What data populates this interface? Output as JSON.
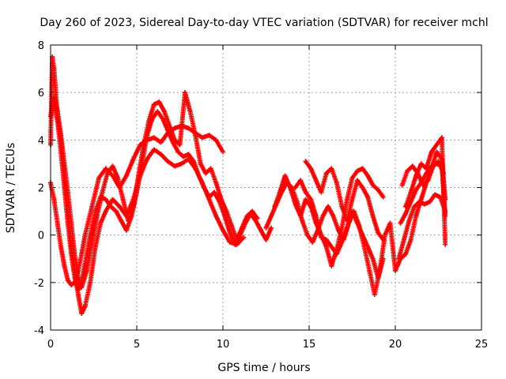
{
  "chart_data": {
    "type": "scatter",
    "title": "Day 260 of 2023, Sidereal Day-to-day VTEC variation (SDTVAR) for receiver mchl",
    "xlabel": "GPS time / hours",
    "ylabel": "SDTVAR / TECUs",
    "xlim": [
      0,
      25
    ],
    "ylim": [
      -4,
      8
    ],
    "xticks": [
      0,
      5,
      10,
      15,
      20,
      25
    ],
    "yticks": [
      -4,
      -2,
      0,
      2,
      4,
      6,
      8
    ],
    "grid": true,
    "marker": "+",
    "color": "#ff0000",
    "series": [
      {
        "name": "trace-1",
        "x": [
          0.0,
          0.2,
          0.4,
          0.6,
          0.8,
          1.0,
          1.2,
          1.4,
          1.6,
          1.8,
          2.0,
          2.4,
          2.8,
          3.2,
          3.6,
          4.0,
          4.4,
          4.8,
          5.2,
          5.6,
          6.0,
          6.4,
          6.8,
          7.2,
          7.6,
          8.0,
          8.4,
          8.8,
          9.2,
          9.6,
          10.0
        ],
        "y": [
          2.2,
          1.5,
          0.5,
          -0.5,
          -1.3,
          -1.9,
          -2.1,
          -2.0,
          -1.5,
          -0.8,
          0.0,
          1.2,
          2.4,
          2.8,
          2.5,
          2.0,
          2.5,
          3.2,
          3.8,
          4.0,
          4.1,
          3.9,
          4.3,
          4.5,
          4.6,
          4.5,
          4.3,
          4.1,
          4.2,
          4.0,
          3.5
        ]
      },
      {
        "name": "trace-2",
        "x": [
          0.0,
          0.1,
          0.2,
          0.3,
          0.4,
          0.6,
          0.8,
          1.0,
          1.2,
          1.4,
          1.6,
          1.8,
          2.0,
          2.3,
          2.6,
          2.9,
          3.2,
          3.6,
          4.0,
          4.4,
          4.8,
          5.2,
          5.6,
          6.0,
          6.4,
          6.8,
          7.2,
          7.6,
          8.0,
          8.4,
          8.8,
          9.2,
          9.6,
          10.0,
          10.4,
          10.8,
          11.2
        ],
        "y": [
          3.8,
          7.5,
          7.0,
          6.0,
          5.0,
          4.0,
          2.5,
          1.0,
          -0.5,
          -1.5,
          -2.5,
          -3.3,
          -3.0,
          -2.0,
          -0.5,
          0.5,
          1.0,
          1.5,
          1.2,
          0.8,
          1.5,
          2.5,
          3.2,
          3.6,
          3.4,
          3.1,
          2.9,
          3.0,
          3.2,
          2.8,
          2.2,
          1.5,
          0.8,
          0.2,
          -0.3,
          -0.4,
          -0.1
        ]
      },
      {
        "name": "trace-3",
        "x": [
          0.0,
          0.2,
          0.4,
          0.6,
          0.8,
          1.0,
          1.2,
          1.4,
          1.6,
          1.8,
          2.1,
          2.4,
          2.7,
          3.0,
          3.3,
          3.6,
          3.9,
          4.2,
          4.5,
          4.8,
          5.1,
          5.4,
          5.7,
          6.0,
          6.3,
          6.6,
          6.9,
          7.2,
          7.5,
          7.8,
          8.1,
          8.4,
          8.7,
          9.0,
          9.3,
          9.6,
          9.9,
          10.2,
          10.5,
          10.8,
          11.1,
          11.4,
          11.7,
          12.0
        ],
        "y": [
          5.0,
          5.8,
          5.2,
          4.2,
          3.0,
          1.8,
          0.5,
          -0.8,
          -1.8,
          -2.2,
          -1.5,
          -0.3,
          0.8,
          1.8,
          2.6,
          2.9,
          2.4,
          1.5,
          0.6,
          1.2,
          2.5,
          3.8,
          4.8,
          5.5,
          5.6,
          5.2,
          4.6,
          4.0,
          3.8,
          6.0,
          5.2,
          4.2,
          3.0,
          2.6,
          2.8,
          2.2,
          1.5,
          1.0,
          0.4,
          -0.2,
          0.3,
          0.8,
          1.0,
          0.7
        ]
      },
      {
        "name": "trace-4",
        "x": [
          0.2,
          0.4,
          0.6,
          0.8,
          1.0,
          1.2,
          1.4,
          1.6,
          1.8,
          2.0,
          2.3,
          2.6,
          2.9,
          3.2,
          3.5,
          3.8,
          4.1,
          4.4,
          4.7,
          5.0,
          5.3,
          5.6,
          5.9,
          6.2,
          6.5,
          6.8,
          7.1,
          7.4,
          7.7,
          8.0,
          8.3,
          8.6,
          8.9,
          9.2,
          9.5,
          9.8,
          10.1,
          10.4,
          10.7,
          11.0,
          11.3,
          11.6,
          11.9,
          12.2,
          12.5,
          12.8
        ],
        "y": [
          5.5,
          4.8,
          3.5,
          2.0,
          0.5,
          -0.8,
          -1.8,
          -2.3,
          -2.0,
          -1.2,
          0.0,
          1.0,
          1.6,
          1.5,
          1.2,
          1.0,
          0.6,
          0.2,
          0.8,
          1.8,
          3.0,
          4.2,
          4.9,
          5.2,
          4.9,
          4.4,
          3.9,
          3.5,
          3.3,
          3.4,
          3.1,
          2.5,
          2.0,
          1.6,
          1.8,
          1.4,
          0.8,
          0.1,
          -0.4,
          0.0,
          0.5,
          0.9,
          0.6,
          0.2,
          -0.2,
          0.3
        ]
      },
      {
        "name": "trace-5",
        "x": [
          12.5,
          12.8,
          13.1,
          13.4,
          13.7,
          14.0,
          14.3,
          14.6,
          14.9,
          15.2,
          15.5,
          15.8,
          16.1,
          16.4,
          16.7,
          17.0,
          17.3,
          17.6,
          17.9,
          18.2,
          18.5,
          18.8,
          19.1,
          19.4,
          19.7,
          20.0,
          20.3,
          20.6,
          20.9,
          21.2,
          21.5,
          21.8,
          22.1,
          22.4,
          22.7,
          22.9
        ],
        "y": [
          0.3,
          0.8,
          1.3,
          1.8,
          2.2,
          2.0,
          1.4,
          0.6,
          0.0,
          -0.3,
          0.2,
          0.8,
          1.2,
          0.8,
          0.2,
          -0.2,
          0.5,
          1.0,
          0.4,
          -0.5,
          -1.5,
          -2.5,
          -1.5,
          0.0,
          0.5,
          -1.5,
          -1.0,
          -0.8,
          -0.2,
          0.8,
          1.5,
          2.2,
          2.8,
          3.5,
          3.2,
          1.5
        ]
      },
      {
        "name": "trace-6",
        "x": [
          13.0,
          13.3,
          13.6,
          13.9,
          14.2,
          14.5,
          14.8,
          15.1,
          15.4,
          15.7,
          16.0,
          16.3,
          16.6,
          16.9,
          17.2,
          17.5,
          17.8,
          18.1,
          18.4,
          18.7,
          19.0,
          19.3
        ],
        "y": [
          1.2,
          1.8,
          2.5,
          2.0,
          1.3,
          0.8,
          1.5,
          1.2,
          0.5,
          0.0,
          -0.5,
          -1.3,
          -0.6,
          0.3,
          1.5,
          2.4,
          2.7,
          2.8,
          2.5,
          2.1,
          1.9,
          1.6
        ]
      },
      {
        "name": "trace-7",
        "x": [
          14.2,
          14.5,
          14.8,
          15.1,
          15.4,
          15.7,
          16.0,
          16.3,
          16.6,
          16.9,
          17.2,
          17.5,
          17.8,
          18.1,
          18.4,
          18.7,
          19.0,
          19.3
        ],
        "y": [
          2.0,
          2.3,
          1.8,
          1.5,
          0.8,
          -0.1,
          -0.2,
          -0.5,
          -0.8,
          -0.3,
          0.3,
          1.0,
          0.5,
          0.0,
          -0.5,
          -1.0,
          -1.8,
          -1.0
        ]
      },
      {
        "name": "trace-8",
        "x": [
          14.8,
          15.1,
          15.4,
          15.7,
          16.0,
          16.3,
          16.6,
          16.9,
          17.2,
          17.5,
          17.8,
          18.1,
          18.4,
          18.7,
          19.0,
          19.3
        ],
        "y": [
          3.1,
          2.8,
          2.3,
          1.8,
          2.6,
          2.8,
          2.2,
          1.2,
          0.6,
          1.5,
          2.3,
          2.0,
          1.6,
          0.8,
          0.1,
          -0.2
        ]
      },
      {
        "name": "trace-9",
        "x": [
          20.2,
          20.5,
          20.8,
          21.1,
          21.4,
          21.7,
          22.0,
          22.3,
          22.6,
          22.9
        ],
        "y": [
          -1.0,
          -0.2,
          0.6,
          1.2,
          1.4,
          1.3,
          1.4,
          1.7,
          1.6,
          1.0
        ]
      },
      {
        "name": "trace-10",
        "x": [
          20.4,
          20.7,
          21.0,
          21.3,
          21.6,
          21.9,
          22.2,
          22.5,
          22.8
        ],
        "y": [
          2.1,
          2.7,
          2.9,
          2.6,
          2.1,
          2.3,
          2.9,
          3.1,
          2.6
        ]
      },
      {
        "name": "trace-11",
        "x": [
          20.6,
          20.9,
          21.2,
          21.5,
          21.8,
          22.1,
          22.4,
          22.7,
          22.9
        ],
        "y": [
          1.2,
          1.8,
          2.5,
          3.0,
          2.8,
          3.5,
          3.8,
          4.1,
          -0.4
        ]
      },
      {
        "name": "trace-12",
        "x": [
          20.3,
          20.6,
          20.9,
          21.2,
          21.5,
          21.8,
          22.1,
          22.4,
          22.7,
          22.9
        ],
        "y": [
          0.5,
          0.9,
          1.4,
          1.9,
          2.2,
          2.6,
          2.9,
          3.0,
          2.9,
          0.8
        ]
      }
    ]
  }
}
